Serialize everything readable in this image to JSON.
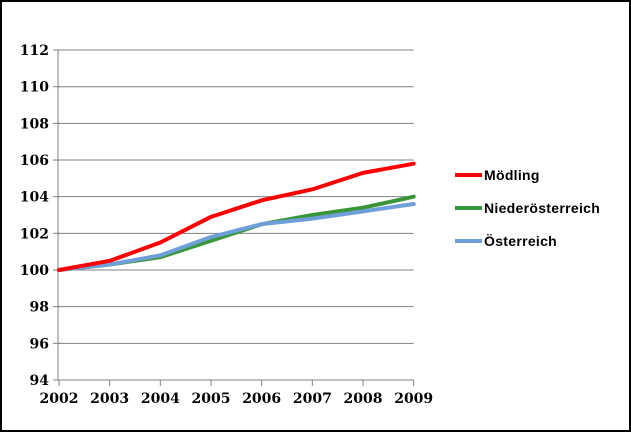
{
  "chart_data": {
    "type": "line",
    "title": "",
    "xlabel": "",
    "ylabel": "",
    "x": [
      2002,
      2003,
      2004,
      2005,
      2006,
      2007,
      2008,
      2009
    ],
    "series": [
      {
        "name": "Mödling",
        "color": "#ff0000",
        "values": [
          100,
          100.5,
          101.5,
          102.9,
          103.8,
          104.4,
          105.3,
          105.8
        ]
      },
      {
        "name": "Niederösterreich",
        "color": "#389638",
        "values": [
          100,
          100.3,
          100.7,
          101.6,
          102.5,
          103.0,
          103.4,
          104.0
        ]
      },
      {
        "name": "Österreich",
        "color": "#6f9fd8",
        "values": [
          100,
          100.3,
          100.8,
          101.8,
          102.5,
          102.8,
          103.2,
          103.6
        ]
      }
    ],
    "ylim": [
      94,
      112
    ],
    "ytick_step": 2,
    "grid": true,
    "legend_position": "right",
    "colors": {
      "grid": "#808080",
      "axis": "#808080",
      "tick": "#808080",
      "label": "#000000",
      "background": "#ffffff",
      "border": "#000000"
    }
  }
}
